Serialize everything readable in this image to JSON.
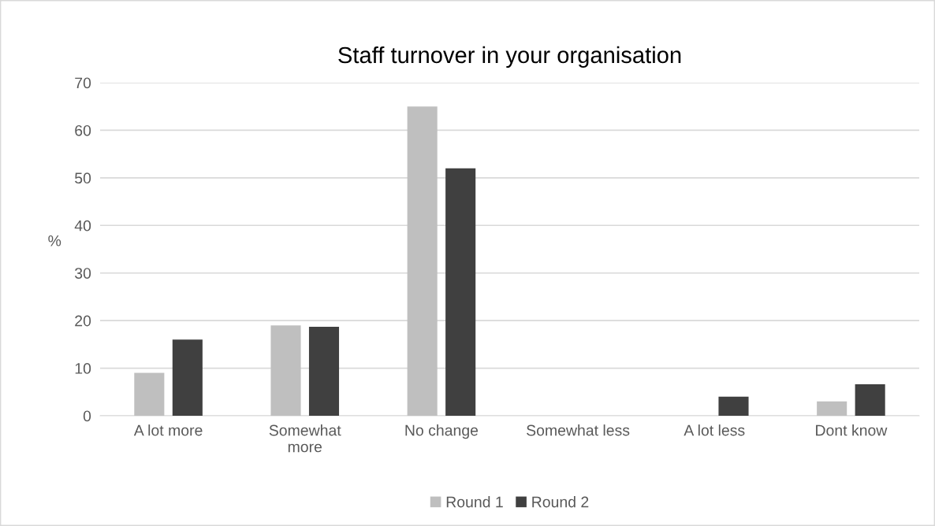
{
  "chart_data": {
    "type": "bar",
    "title": "Staff turnover in your organisation",
    "ylabel": "%",
    "categories": [
      "A lot more",
      "Somewhat\nmore",
      "No change",
      "Somewhat less",
      "A lot less",
      "Dont know"
    ],
    "series": [
      {
        "name": "Round 1",
        "color": "#bfbfbf",
        "values": [
          9,
          19,
          65,
          0,
          0,
          3
        ]
      },
      {
        "name": "Round 2",
        "color": "#404040",
        "values": [
          16,
          18.7,
          52,
          0,
          4,
          6.6
        ]
      }
    ],
    "ylim": [
      0,
      70
    ],
    "yticks": [
      0,
      10,
      20,
      30,
      40,
      50,
      60,
      70
    ],
    "grid": "y",
    "legend": "bottom"
  }
}
